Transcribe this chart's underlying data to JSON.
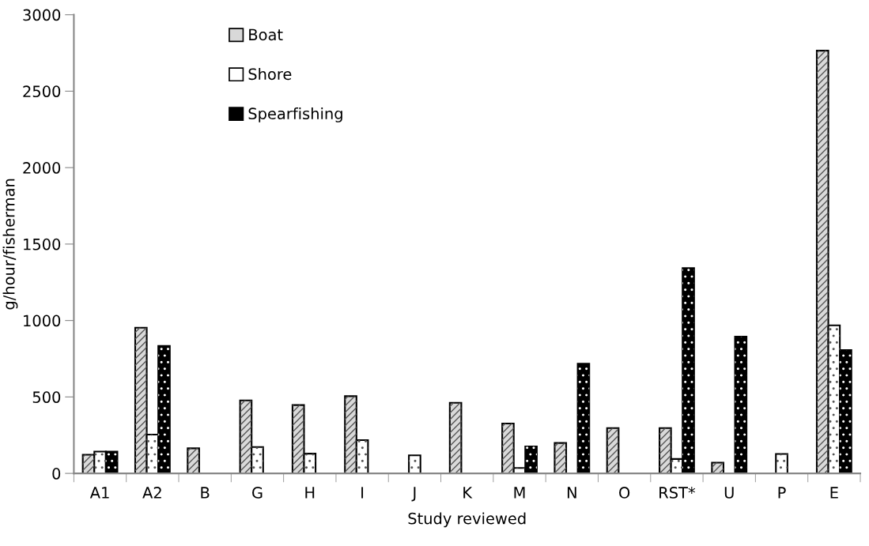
{
  "chart_data": {
    "type": "bar",
    "xlabel": "Study reviewed",
    "ylabel": "g/hour/fisherman",
    "categories": [
      "A1",
      "A2",
      "B",
      "G",
      "H",
      "I",
      "J",
      "K",
      "M",
      "N",
      "O",
      "RST*",
      "U",
      "P",
      "E"
    ],
    "series": [
      {
        "name": "Boat",
        "color": "#d9d9d9",
        "values": [
          122,
          953,
          164,
          477,
          447,
          505,
          null,
          462,
          326,
          199,
          296,
          296,
          70,
          null,
          2765
        ]
      },
      {
        "name": "Shore",
        "color": "#ffffff",
        "values": [
          143,
          254,
          null,
          172,
          129,
          218,
          118,
          null,
          35,
          null,
          null,
          94,
          null,
          127,
          968
        ]
      },
      {
        "name": "Spearfishing",
        "color": "#000000",
        "values": [
          143,
          834,
          null,
          null,
          null,
          null,
          null,
          null,
          176,
          718,
          null,
          1343,
          894,
          null,
          807
        ]
      }
    ],
    "ylim": [
      0,
      3000
    ],
    "yticks": [
      0,
      500,
      1000,
      1500,
      2000,
      2500,
      3000
    ],
    "grid": false,
    "legend": "top left"
  }
}
